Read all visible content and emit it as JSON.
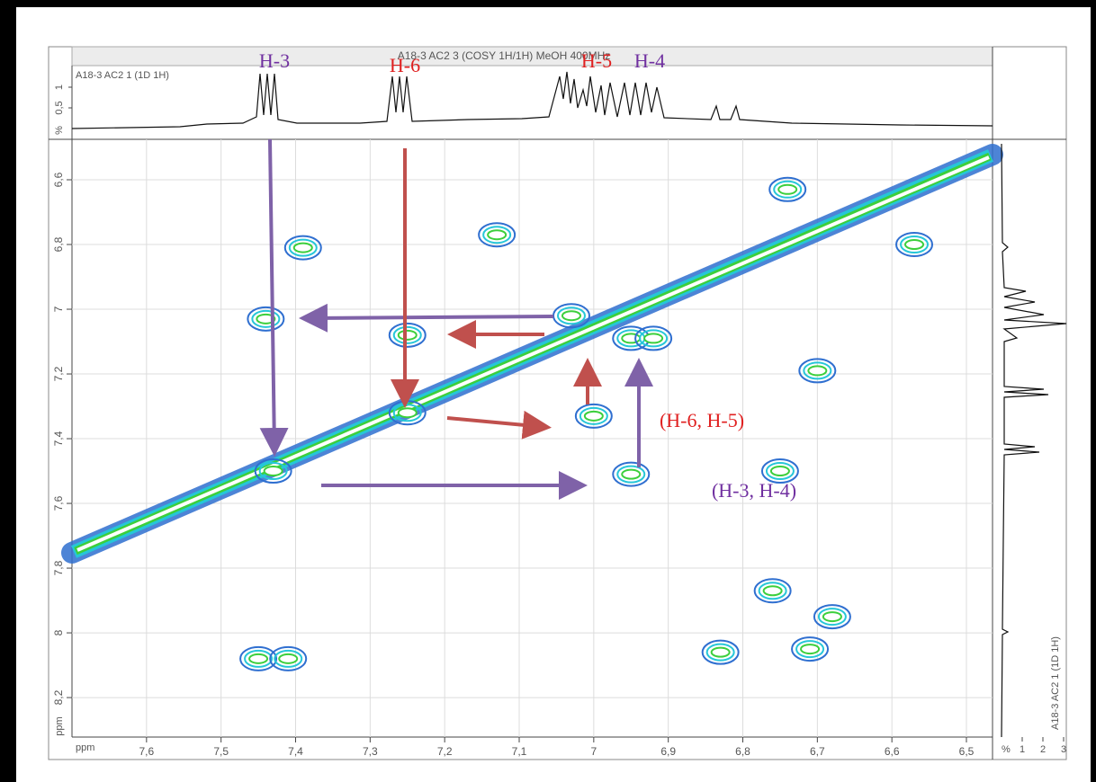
{
  "header": {
    "title": "A18-3 AC2 3 (COSY 1H/1H) MeOH 400MHz",
    "top_trace_label": "A18-3 AC2 1 (1D 1H)",
    "side_trace_label": "A18-3 AC2 1 (1D 1H)"
  },
  "top_trace_axis": {
    "label": "%",
    "ticks": [
      {
        "value": 0.5,
        "label": "0,5"
      },
      1
    ]
  },
  "side_trace_axis": {
    "label": "%",
    "ticks": [
      1,
      2,
      3
    ]
  },
  "chart_data": {
    "type": "contour",
    "x_label": "ppm",
    "y_label": "ppm",
    "xlim": [
      7.7,
      6.465
    ],
    "ylim": [
      6.475,
      8.322
    ],
    "xticks": [
      {
        "value": 7.6,
        "label": "7,6"
      },
      {
        "value": 7.5,
        "label": "7,5"
      },
      {
        "value": 7.4,
        "label": "7,4"
      },
      {
        "value": 7.3,
        "label": "7,3"
      },
      {
        "value": 7.2,
        "label": "7,2"
      },
      {
        "value": 7.1,
        "label": "7,1"
      },
      7,
      {
        "value": 6.9,
        "label": "6,9"
      },
      {
        "value": 6.8,
        "label": "6,8"
      },
      {
        "value": 6.7,
        "label": "6,7"
      },
      {
        "value": 6.6,
        "label": "6,6"
      },
      {
        "value": 6.5,
        "label": "6,5"
      }
    ],
    "yticks": [
      {
        "value": 6.6,
        "label": "6,6"
      },
      {
        "value": 6.8,
        "label": "6,8"
      },
      7,
      {
        "value": 7.2,
        "label": "7,2"
      },
      {
        "value": 7.4,
        "label": "7,4"
      },
      {
        "value": 7.6,
        "label": "7,6"
      },
      {
        "value": 7.8,
        "label": "7,8"
      },
      8,
      {
        "value": 8.2,
        "label": "8,2"
      }
    ],
    "grid": true,
    "colors": [
      "#2f6fd0",
      "#26c6d8",
      "#3ccf3c"
    ],
    "peaks": {
      "x": [
        7.44,
        7.39,
        7.25,
        7.13,
        6.74,
        6.57,
        6.7,
        7.0,
        6.95,
        6.75,
        6.76,
        6.68,
        6.83,
        6.71,
        7.45,
        7.41,
        7.25,
        7.43,
        7.03,
        6.95,
        6.92
      ],
      "y": [
        7.03,
        6.81,
        7.08,
        6.77,
        6.63,
        6.8,
        7.19,
        7.33,
        7.51,
        7.5,
        7.87,
        7.95,
        8.06,
        8.05,
        8.08,
        8.08,
        7.32,
        7.5,
        7.02,
        7.09,
        7.09
      ]
    },
    "annotations": [
      {
        "text": "H-3",
        "color": "#7030a0"
      },
      {
        "text": "H-6",
        "color": "#e02020"
      },
      {
        "text": "H-5",
        "color": "#e02020"
      },
      {
        "text": "H-4",
        "color": "#7030a0"
      },
      {
        "text": "(H-6, H-5)",
        "color": "#e02020"
      },
      {
        "text": "(H-3, H-4)",
        "color": "#7030a0"
      }
    ]
  }
}
